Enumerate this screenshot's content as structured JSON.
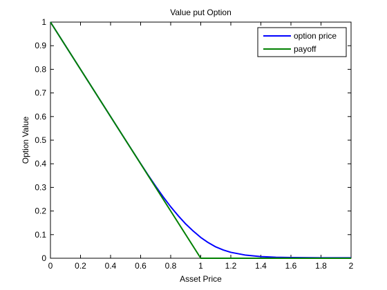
{
  "chart_data": {
    "type": "line",
    "title": "Value put Option",
    "xlabel": "Asset Price",
    "ylabel": "Option Value",
    "xlim": [
      0,
      2
    ],
    "ylim": [
      0,
      1
    ],
    "xticks": [
      "0",
      "0.2",
      "0.4",
      "0.6",
      "0.8",
      "1",
      "1.2",
      "1.4",
      "1.6",
      "1.8",
      "2"
    ],
    "yticks": [
      "0",
      "0.1",
      "0.2",
      "0.3",
      "0.4",
      "0.5",
      "0.6",
      "0.7",
      "0.8",
      "0.9",
      "1"
    ],
    "grid": false,
    "legend_position": "top-right",
    "series": [
      {
        "name": "option price",
        "color": "#0000ff",
        "x": [
          0,
          0.1,
          0.2,
          0.3,
          0.4,
          0.5,
          0.6,
          0.65,
          0.7,
          0.75,
          0.8,
          0.85,
          0.9,
          0.95,
          1.0,
          1.05,
          1.1,
          1.15,
          1.2,
          1.3,
          1.4,
          1.5,
          1.6,
          1.8,
          2.0
        ],
        "y": [
          1.0,
          0.9,
          0.8,
          0.7,
          0.6,
          0.5,
          0.401,
          0.352,
          0.305,
          0.26,
          0.218,
          0.18,
          0.145,
          0.115,
          0.088,
          0.066,
          0.048,
          0.035,
          0.025,
          0.013,
          0.007,
          0.004,
          0.003,
          0.002,
          0.002
        ]
      },
      {
        "name": "payoff",
        "color": "#008000",
        "x": [
          0,
          1.0,
          2.0
        ],
        "y": [
          1.0,
          0,
          0
        ]
      }
    ]
  }
}
